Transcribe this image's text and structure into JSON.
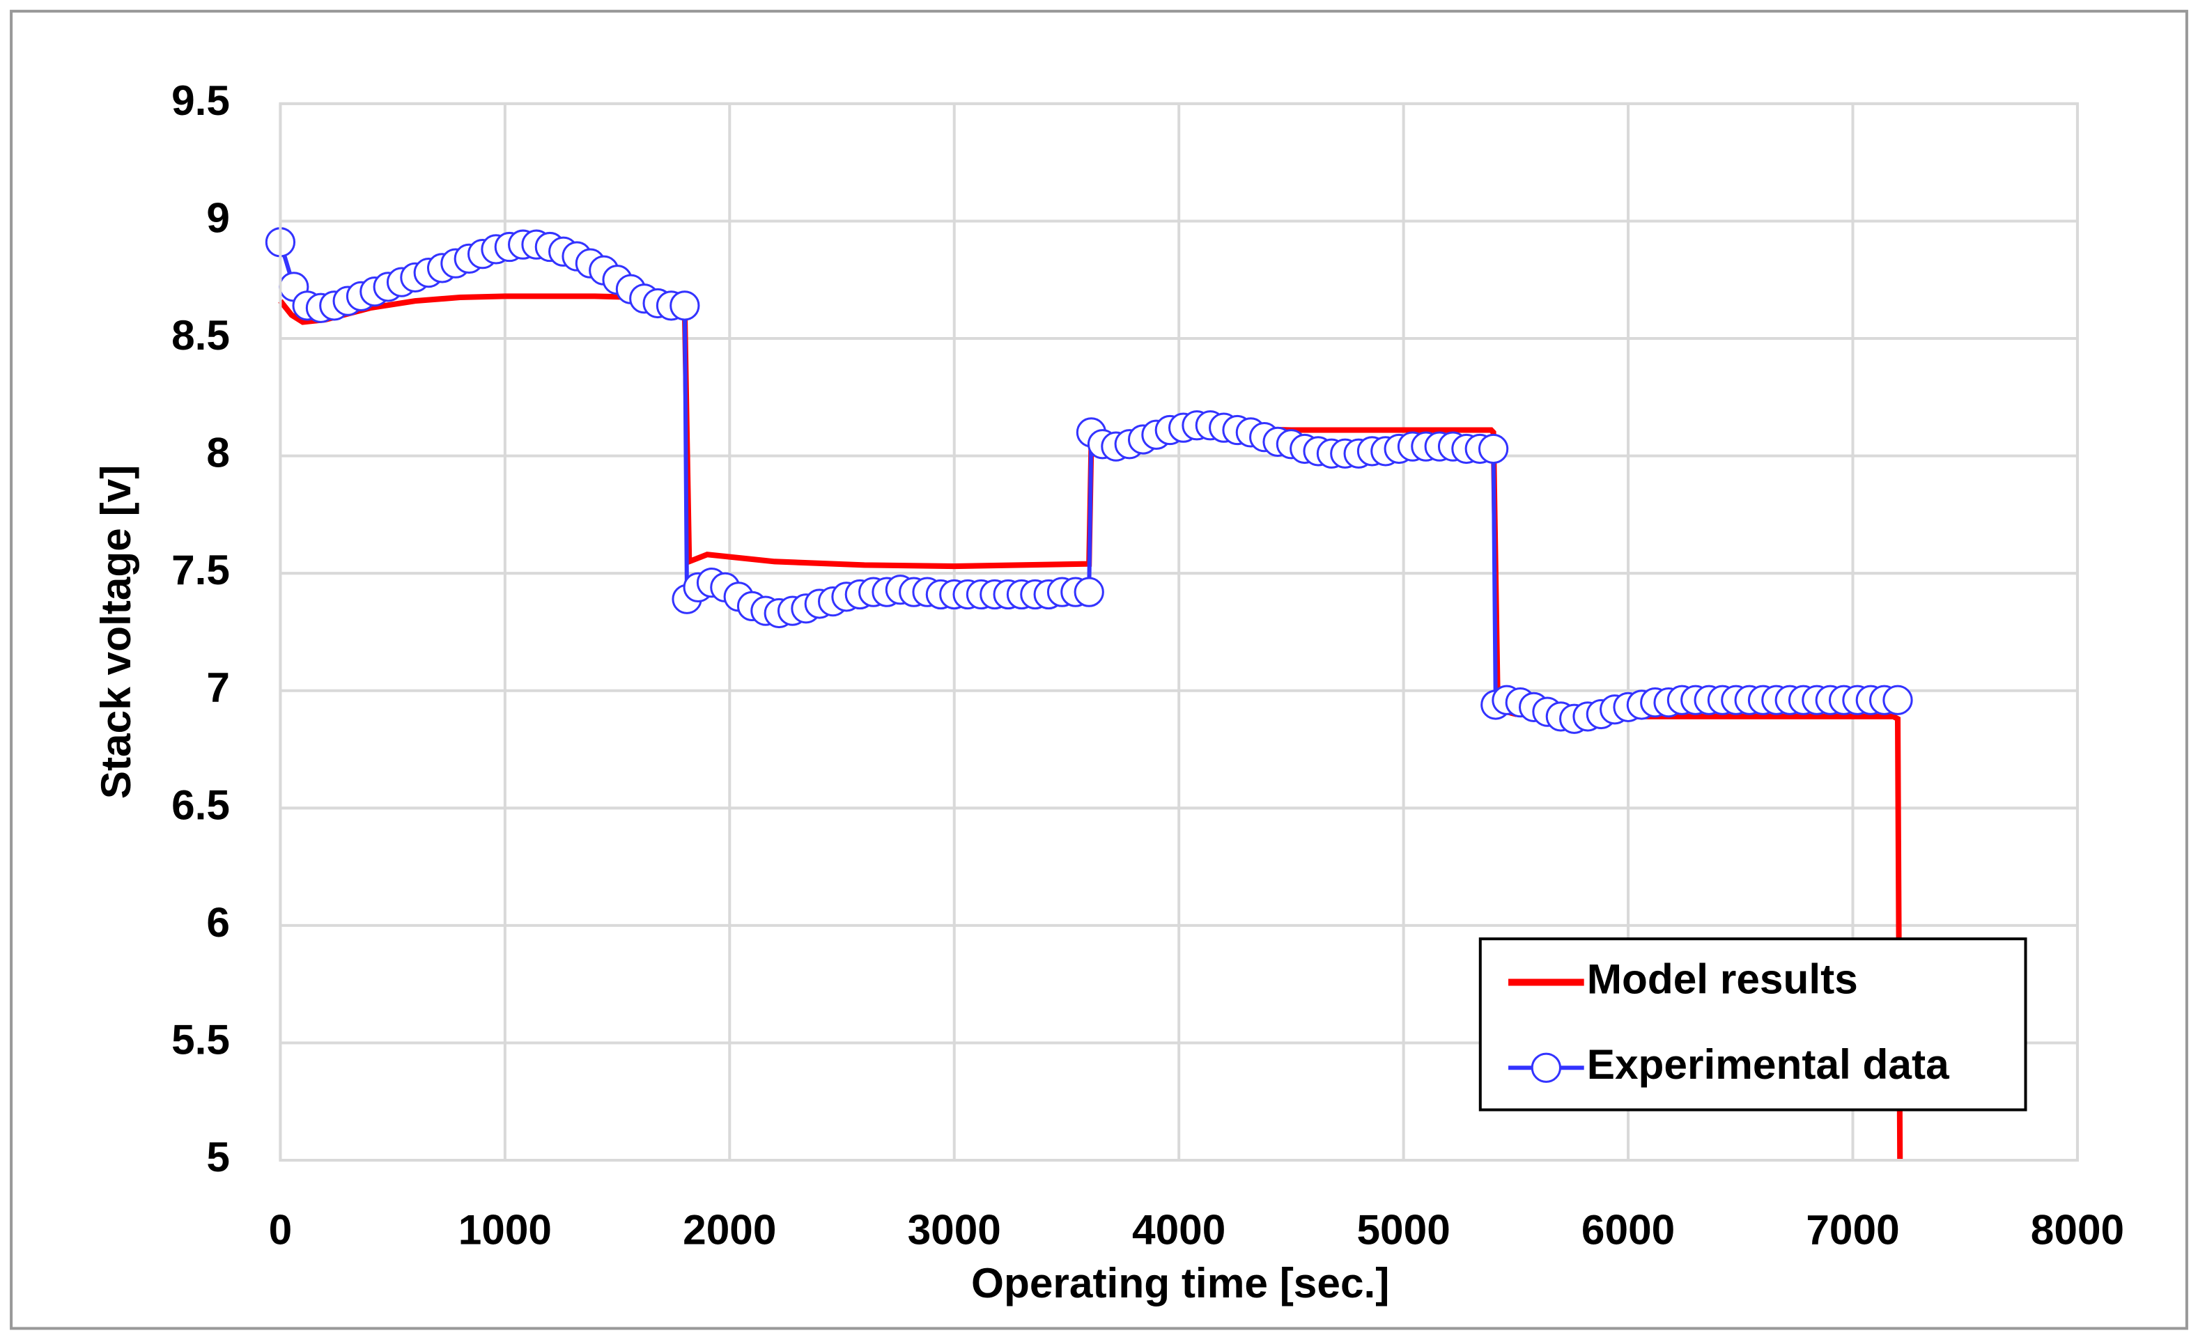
{
  "chart_data": {
    "type": "line",
    "xlabel": "Operating time [sec.]",
    "ylabel": "Stack voltage [v]",
    "xlim": [
      0,
      8000
    ],
    "xticks": [
      0,
      1000,
      2000,
      3000,
      4000,
      5000,
      6000,
      7000,
      8000
    ],
    "ylim": [
      5,
      9.5
    ],
    "yticks": [
      5,
      5.5,
      6,
      6.5,
      7,
      7.5,
      8,
      8.5,
      9,
      9.5
    ],
    "grid": true,
    "legend": "lower right",
    "series": [
      {
        "name": "Model results",
        "color": "#ff0000",
        "marker": false,
        "x": [
          0,
          50,
          100,
          200,
          400,
          600,
          800,
          1000,
          1400,
          1790,
          1800,
          1820,
          1900,
          2200,
          2600,
          3000,
          3590,
          3600,
          3610,
          3800,
          4100,
          4500,
          5390,
          5400,
          5420,
          5500,
          6000,
          7180,
          7200,
          7210
        ],
        "values": [
          8.66,
          8.6,
          8.57,
          8.58,
          8.63,
          8.66,
          8.675,
          8.68,
          8.68,
          8.67,
          8.62,
          7.55,
          7.58,
          7.55,
          7.535,
          7.53,
          7.54,
          7.54,
          8.05,
          8.08,
          8.12,
          8.11,
          8.11,
          8.1,
          6.92,
          6.9,
          6.89,
          6.89,
          6.88,
          5
        ]
      },
      {
        "name": "Experimental data",
        "color": "#3333ff",
        "marker": true,
        "x": [
          0,
          60,
          120,
          180,
          240,
          300,
          360,
          420,
          480,
          540,
          600,
          660,
          720,
          780,
          840,
          900,
          960,
          1020,
          1080,
          1140,
          1200,
          1260,
          1320,
          1380,
          1440,
          1500,
          1560,
          1620,
          1680,
          1740,
          1800,
          1810,
          1860,
          1920,
          1980,
          2040,
          2100,
          2160,
          2220,
          2280,
          2340,
          2400,
          2460,
          2520,
          2580,
          2640,
          2700,
          2760,
          2820,
          2880,
          2940,
          3000,
          3060,
          3120,
          3180,
          3240,
          3300,
          3360,
          3420,
          3480,
          3540,
          3600,
          3610,
          3660,
          3720,
          3780,
          3840,
          3900,
          3960,
          4020,
          4080,
          4140,
          4200,
          4260,
          4320,
          4380,
          4440,
          4500,
          4560,
          4620,
          4680,
          4740,
          4800,
          4860,
          4920,
          4980,
          5040,
          5100,
          5160,
          5220,
          5280,
          5340,
          5400,
          5410,
          5460,
          5520,
          5580,
          5640,
          5700,
          5760,
          5820,
          5880,
          5940,
          6000,
          6060,
          6120,
          6180,
          6240,
          6300,
          6360,
          6420,
          6480,
          6540,
          6600,
          6660,
          6720,
          6780,
          6840,
          6900,
          6960,
          7020,
          7080,
          7140,
          7200
        ],
        "values": [
          8.91,
          8.72,
          8.64,
          8.63,
          8.64,
          8.66,
          8.68,
          8.7,
          8.72,
          8.74,
          8.76,
          8.78,
          8.8,
          8.82,
          8.84,
          8.86,
          8.88,
          8.89,
          8.9,
          8.9,
          8.89,
          8.87,
          8.85,
          8.82,
          8.79,
          8.75,
          8.71,
          8.67,
          8.65,
          8.64,
          8.64,
          7.39,
          7.44,
          7.46,
          7.44,
          7.4,
          7.36,
          7.34,
          7.33,
          7.34,
          7.35,
          7.37,
          7.38,
          7.4,
          7.41,
          7.42,
          7.42,
          7.43,
          7.42,
          7.42,
          7.41,
          7.41,
          7.41,
          7.41,
          7.41,
          7.41,
          7.41,
          7.41,
          7.41,
          7.42,
          7.42,
          7.42,
          8.1,
          8.05,
          8.04,
          8.05,
          8.07,
          8.09,
          8.11,
          8.12,
          8.13,
          8.13,
          8.12,
          8.11,
          8.1,
          8.08,
          8.06,
          8.05,
          8.03,
          8.02,
          8.01,
          8.01,
          8.01,
          8.02,
          8.02,
          8.03,
          8.04,
          8.04,
          8.04,
          8.04,
          8.03,
          8.03,
          8.03,
          6.94,
          6.96,
          6.95,
          6.93,
          6.91,
          6.89,
          6.88,
          6.89,
          6.9,
          6.92,
          6.93,
          6.94,
          6.95,
          6.95,
          6.96,
          6.96,
          6.96,
          6.96,
          6.96,
          6.96,
          6.96,
          6.96,
          6.96,
          6.96,
          6.96,
          6.96,
          6.96,
          6.96,
          6.96,
          6.96,
          6.96
        ]
      }
    ]
  }
}
